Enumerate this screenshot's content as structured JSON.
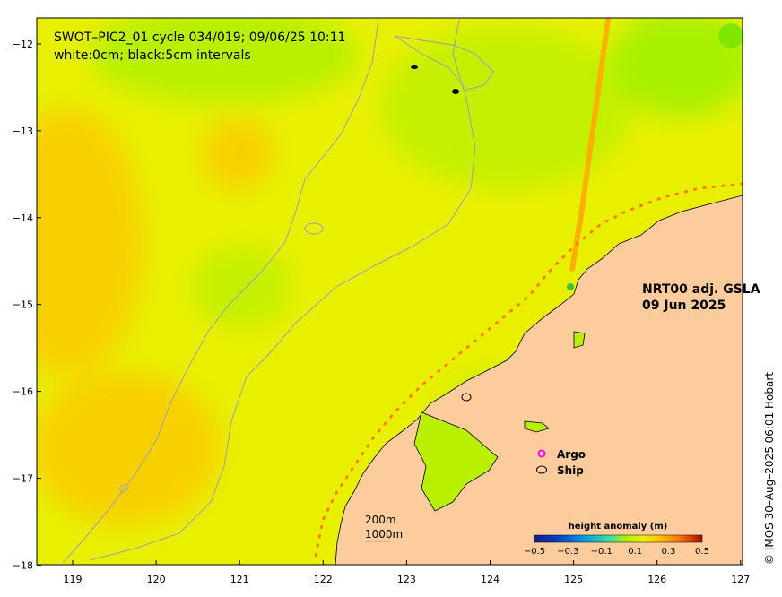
{
  "title": {
    "line1": "SWOT–PIC2_01 cycle 034/019; 09/06/25 10:11",
    "line2": "white:0cm; black:5cm intervals"
  },
  "product": {
    "line1": "NRT00 adj. GSLA",
    "line2": "09 Jun 2025"
  },
  "legend": {
    "argo_label": "Argo",
    "ship_label": "Ship",
    "argo_color": "#ff00ff",
    "ship_color": "#000000"
  },
  "scale": {
    "line1": "200m",
    "line2": "1000m"
  },
  "colorbar": {
    "title": "height anomaly (m)",
    "ticks": [
      "−0.5",
      "−0.3",
      "−0.1",
      "0.1",
      "0.3",
      "0.5"
    ],
    "range": [
      -0.5,
      0.5
    ],
    "colors": [
      "#1a1a8c",
      "#0044cc",
      "#00a0e0",
      "#40e0a0",
      "#a8f000",
      "#e8f000",
      "#ffc000",
      "#ff8000",
      "#e04000",
      "#a01000"
    ]
  },
  "credit": "© IMOS 30–Aug–2025 06:01 Hobart",
  "axes": {
    "x_ticks": [
      "119",
      "120",
      "121",
      "122",
      "123",
      "124",
      "125",
      "126",
      "127"
    ],
    "y_ticks": [
      "−12",
      "−13",
      "−14",
      "−15",
      "−16",
      "−17",
      "−18"
    ],
    "lon_range": [
      118.6,
      127
    ],
    "lat_range": [
      -18,
      -11.75
    ]
  },
  "colors": {
    "land": "#fccc9c",
    "ocean_base": "#e8f000",
    "ocean_high": "#f8d000",
    "ocean_low": "#b8f000",
    "ocean_lower": "#90e800",
    "contour_grey": "#a0a0a0",
    "swot_swath": "#ffb000"
  }
}
